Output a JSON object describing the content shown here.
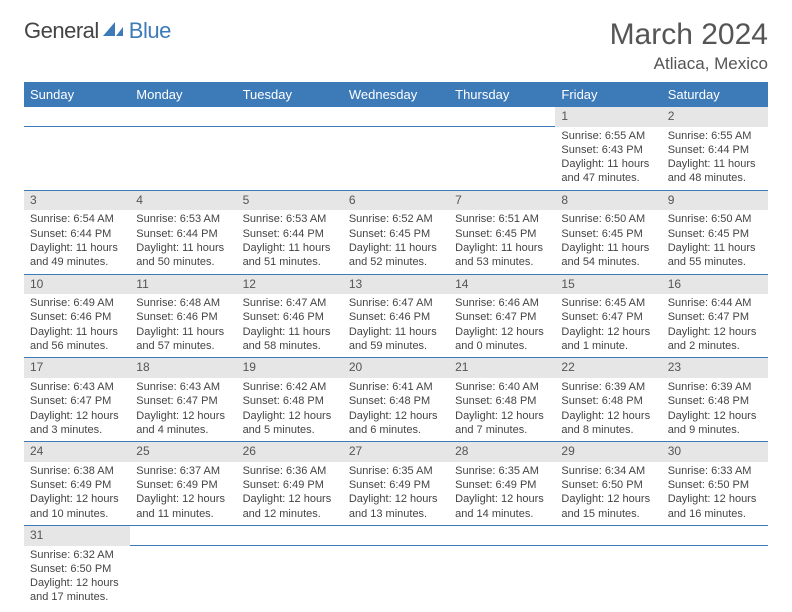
{
  "logo": {
    "general": "General",
    "blue": "Blue"
  },
  "title": "March 2024",
  "location": "Atliaca, Mexico",
  "colors": {
    "header_bg": "#3d7ab8",
    "header_fg": "#ffffff",
    "daynum_bg": "#e6e6e6",
    "row_border": "#3d7ab8",
    "text": "#444444",
    "page_bg": "#ffffff"
  },
  "weekdays": [
    "Sunday",
    "Monday",
    "Tuesday",
    "Wednesday",
    "Thursday",
    "Friday",
    "Saturday"
  ],
  "weeks": [
    {
      "days": [
        null,
        null,
        null,
        null,
        null,
        {
          "n": "1",
          "sunrise": "Sunrise: 6:55 AM",
          "sunset": "Sunset: 6:43 PM",
          "day1": "Daylight: 11 hours",
          "day2": "and 47 minutes."
        },
        {
          "n": "2",
          "sunrise": "Sunrise: 6:55 AM",
          "sunset": "Sunset: 6:44 PM",
          "day1": "Daylight: 11 hours",
          "day2": "and 48 minutes."
        }
      ]
    },
    {
      "days": [
        {
          "n": "3",
          "sunrise": "Sunrise: 6:54 AM",
          "sunset": "Sunset: 6:44 PM",
          "day1": "Daylight: 11 hours",
          "day2": "and 49 minutes."
        },
        {
          "n": "4",
          "sunrise": "Sunrise: 6:53 AM",
          "sunset": "Sunset: 6:44 PM",
          "day1": "Daylight: 11 hours",
          "day2": "and 50 minutes."
        },
        {
          "n": "5",
          "sunrise": "Sunrise: 6:53 AM",
          "sunset": "Sunset: 6:44 PM",
          "day1": "Daylight: 11 hours",
          "day2": "and 51 minutes."
        },
        {
          "n": "6",
          "sunrise": "Sunrise: 6:52 AM",
          "sunset": "Sunset: 6:45 PM",
          "day1": "Daylight: 11 hours",
          "day2": "and 52 minutes."
        },
        {
          "n": "7",
          "sunrise": "Sunrise: 6:51 AM",
          "sunset": "Sunset: 6:45 PM",
          "day1": "Daylight: 11 hours",
          "day2": "and 53 minutes."
        },
        {
          "n": "8",
          "sunrise": "Sunrise: 6:50 AM",
          "sunset": "Sunset: 6:45 PM",
          "day1": "Daylight: 11 hours",
          "day2": "and 54 minutes."
        },
        {
          "n": "9",
          "sunrise": "Sunrise: 6:50 AM",
          "sunset": "Sunset: 6:45 PM",
          "day1": "Daylight: 11 hours",
          "day2": "and 55 minutes."
        }
      ]
    },
    {
      "days": [
        {
          "n": "10",
          "sunrise": "Sunrise: 6:49 AM",
          "sunset": "Sunset: 6:46 PM",
          "day1": "Daylight: 11 hours",
          "day2": "and 56 minutes."
        },
        {
          "n": "11",
          "sunrise": "Sunrise: 6:48 AM",
          "sunset": "Sunset: 6:46 PM",
          "day1": "Daylight: 11 hours",
          "day2": "and 57 minutes."
        },
        {
          "n": "12",
          "sunrise": "Sunrise: 6:47 AM",
          "sunset": "Sunset: 6:46 PM",
          "day1": "Daylight: 11 hours",
          "day2": "and 58 minutes."
        },
        {
          "n": "13",
          "sunrise": "Sunrise: 6:47 AM",
          "sunset": "Sunset: 6:46 PM",
          "day1": "Daylight: 11 hours",
          "day2": "and 59 minutes."
        },
        {
          "n": "14",
          "sunrise": "Sunrise: 6:46 AM",
          "sunset": "Sunset: 6:47 PM",
          "day1": "Daylight: 12 hours",
          "day2": "and 0 minutes."
        },
        {
          "n": "15",
          "sunrise": "Sunrise: 6:45 AM",
          "sunset": "Sunset: 6:47 PM",
          "day1": "Daylight: 12 hours",
          "day2": "and 1 minute."
        },
        {
          "n": "16",
          "sunrise": "Sunrise: 6:44 AM",
          "sunset": "Sunset: 6:47 PM",
          "day1": "Daylight: 12 hours",
          "day2": "and 2 minutes."
        }
      ]
    },
    {
      "days": [
        {
          "n": "17",
          "sunrise": "Sunrise: 6:43 AM",
          "sunset": "Sunset: 6:47 PM",
          "day1": "Daylight: 12 hours",
          "day2": "and 3 minutes."
        },
        {
          "n": "18",
          "sunrise": "Sunrise: 6:43 AM",
          "sunset": "Sunset: 6:47 PM",
          "day1": "Daylight: 12 hours",
          "day2": "and 4 minutes."
        },
        {
          "n": "19",
          "sunrise": "Sunrise: 6:42 AM",
          "sunset": "Sunset: 6:48 PM",
          "day1": "Daylight: 12 hours",
          "day2": "and 5 minutes."
        },
        {
          "n": "20",
          "sunrise": "Sunrise: 6:41 AM",
          "sunset": "Sunset: 6:48 PM",
          "day1": "Daylight: 12 hours",
          "day2": "and 6 minutes."
        },
        {
          "n": "21",
          "sunrise": "Sunrise: 6:40 AM",
          "sunset": "Sunset: 6:48 PM",
          "day1": "Daylight: 12 hours",
          "day2": "and 7 minutes."
        },
        {
          "n": "22",
          "sunrise": "Sunrise: 6:39 AM",
          "sunset": "Sunset: 6:48 PM",
          "day1": "Daylight: 12 hours",
          "day2": "and 8 minutes."
        },
        {
          "n": "23",
          "sunrise": "Sunrise: 6:39 AM",
          "sunset": "Sunset: 6:48 PM",
          "day1": "Daylight: 12 hours",
          "day2": "and 9 minutes."
        }
      ]
    },
    {
      "days": [
        {
          "n": "24",
          "sunrise": "Sunrise: 6:38 AM",
          "sunset": "Sunset: 6:49 PM",
          "day1": "Daylight: 12 hours",
          "day2": "and 10 minutes."
        },
        {
          "n": "25",
          "sunrise": "Sunrise: 6:37 AM",
          "sunset": "Sunset: 6:49 PM",
          "day1": "Daylight: 12 hours",
          "day2": "and 11 minutes."
        },
        {
          "n": "26",
          "sunrise": "Sunrise: 6:36 AM",
          "sunset": "Sunset: 6:49 PM",
          "day1": "Daylight: 12 hours",
          "day2": "and 12 minutes."
        },
        {
          "n": "27",
          "sunrise": "Sunrise: 6:35 AM",
          "sunset": "Sunset: 6:49 PM",
          "day1": "Daylight: 12 hours",
          "day2": "and 13 minutes."
        },
        {
          "n": "28",
          "sunrise": "Sunrise: 6:35 AM",
          "sunset": "Sunset: 6:49 PM",
          "day1": "Daylight: 12 hours",
          "day2": "and 14 minutes."
        },
        {
          "n": "29",
          "sunrise": "Sunrise: 6:34 AM",
          "sunset": "Sunset: 6:50 PM",
          "day1": "Daylight: 12 hours",
          "day2": "and 15 minutes."
        },
        {
          "n": "30",
          "sunrise": "Sunrise: 6:33 AM",
          "sunset": "Sunset: 6:50 PM",
          "day1": "Daylight: 12 hours",
          "day2": "and 16 minutes."
        }
      ]
    },
    {
      "days": [
        {
          "n": "31",
          "sunrise": "Sunrise: 6:32 AM",
          "sunset": "Sunset: 6:50 PM",
          "day1": "Daylight: 12 hours",
          "day2": "and 17 minutes."
        },
        null,
        null,
        null,
        null,
        null,
        null
      ]
    }
  ]
}
